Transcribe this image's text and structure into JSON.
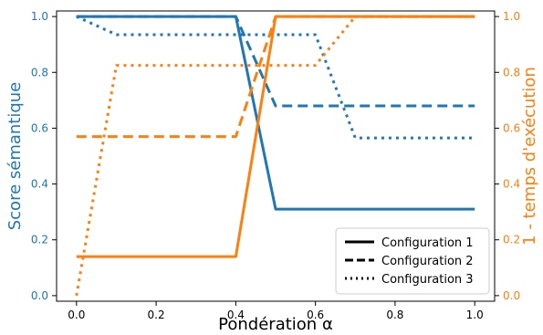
{
  "chart_data": {
    "type": "line",
    "xlabel": "Pondération α",
    "ylabel_left": "Score sémantique",
    "ylabel_right": "1 - temps d'exécution",
    "xlim": [
      -0.05,
      1.05
    ],
    "ylim_left": [
      -0.02,
      1.02
    ],
    "ylim_right": [
      -0.02,
      1.02
    ],
    "x_ticks": [
      "0.0",
      "0.2",
      "0.4",
      "0.6",
      "0.8",
      "1.0"
    ],
    "y_ticks_left": [
      "0.0",
      "0.2",
      "0.4",
      "0.6",
      "0.8",
      "1.0"
    ],
    "y_ticks_right": [
      "0.0",
      "0.2",
      "0.4",
      "0.6",
      "0.8",
      "1.0"
    ],
    "grid": false,
    "legend_position": "lower right",
    "legend": [
      "Configuration 1",
      "Configuration 2",
      "Configuration 3"
    ],
    "colors": {
      "left_axis": "#1f77b4",
      "right_axis": "#ff7f0e"
    },
    "series": [
      {
        "name": "Configuration 1",
        "axis": "left",
        "style": "solid",
        "x": [
          0.0,
          0.1,
          0.2,
          0.3,
          0.4,
          0.5,
          0.6,
          0.7,
          0.8,
          0.9,
          1.0
        ],
        "y": [
          1.0,
          1.0,
          1.0,
          1.0,
          1.0,
          0.31,
          0.31,
          0.31,
          0.31,
          0.31,
          0.31
        ]
      },
      {
        "name": "Configuration 2",
        "axis": "left",
        "style": "dashed",
        "x": [
          0.0,
          0.1,
          0.2,
          0.3,
          0.4,
          0.5,
          0.6,
          0.7,
          0.8,
          0.9,
          1.0
        ],
        "y": [
          1.0,
          1.0,
          1.0,
          1.0,
          1.0,
          0.68,
          0.68,
          0.68,
          0.68,
          0.68,
          0.68
        ]
      },
      {
        "name": "Configuration 3",
        "axis": "left",
        "style": "dotted",
        "x": [
          0.0,
          0.1,
          0.2,
          0.3,
          0.4,
          0.5,
          0.6,
          0.7,
          0.8,
          0.9,
          1.0
        ],
        "y": [
          1.0,
          0.935,
          0.935,
          0.935,
          0.935,
          0.935,
          0.935,
          0.565,
          0.565,
          0.565,
          0.565
        ]
      },
      {
        "name": "Configuration 1",
        "axis": "right",
        "style": "solid",
        "x": [
          0.0,
          0.1,
          0.2,
          0.3,
          0.4,
          0.5,
          0.6,
          0.7,
          0.8,
          0.9,
          1.0
        ],
        "y": [
          0.14,
          0.14,
          0.14,
          0.14,
          0.14,
          1.0,
          1.0,
          1.0,
          1.0,
          1.0,
          1.0
        ]
      },
      {
        "name": "Configuration 2",
        "axis": "right",
        "style": "dashed",
        "x": [
          0.0,
          0.1,
          0.2,
          0.3,
          0.4,
          0.5,
          0.6,
          0.7,
          0.8,
          0.9,
          1.0
        ],
        "y": [
          0.57,
          0.57,
          0.57,
          0.57,
          0.57,
          1.0,
          1.0,
          1.0,
          1.0,
          1.0,
          1.0
        ]
      },
      {
        "name": "Configuration 3",
        "axis": "right",
        "style": "dotted",
        "x": [
          0.0,
          0.1,
          0.2,
          0.3,
          0.4,
          0.5,
          0.6,
          0.7,
          0.8,
          0.9,
          1.0
        ],
        "y": [
          0.0,
          0.825,
          0.825,
          0.825,
          0.825,
          0.825,
          0.825,
          1.0,
          1.0,
          1.0,
          1.0
        ]
      }
    ]
  }
}
